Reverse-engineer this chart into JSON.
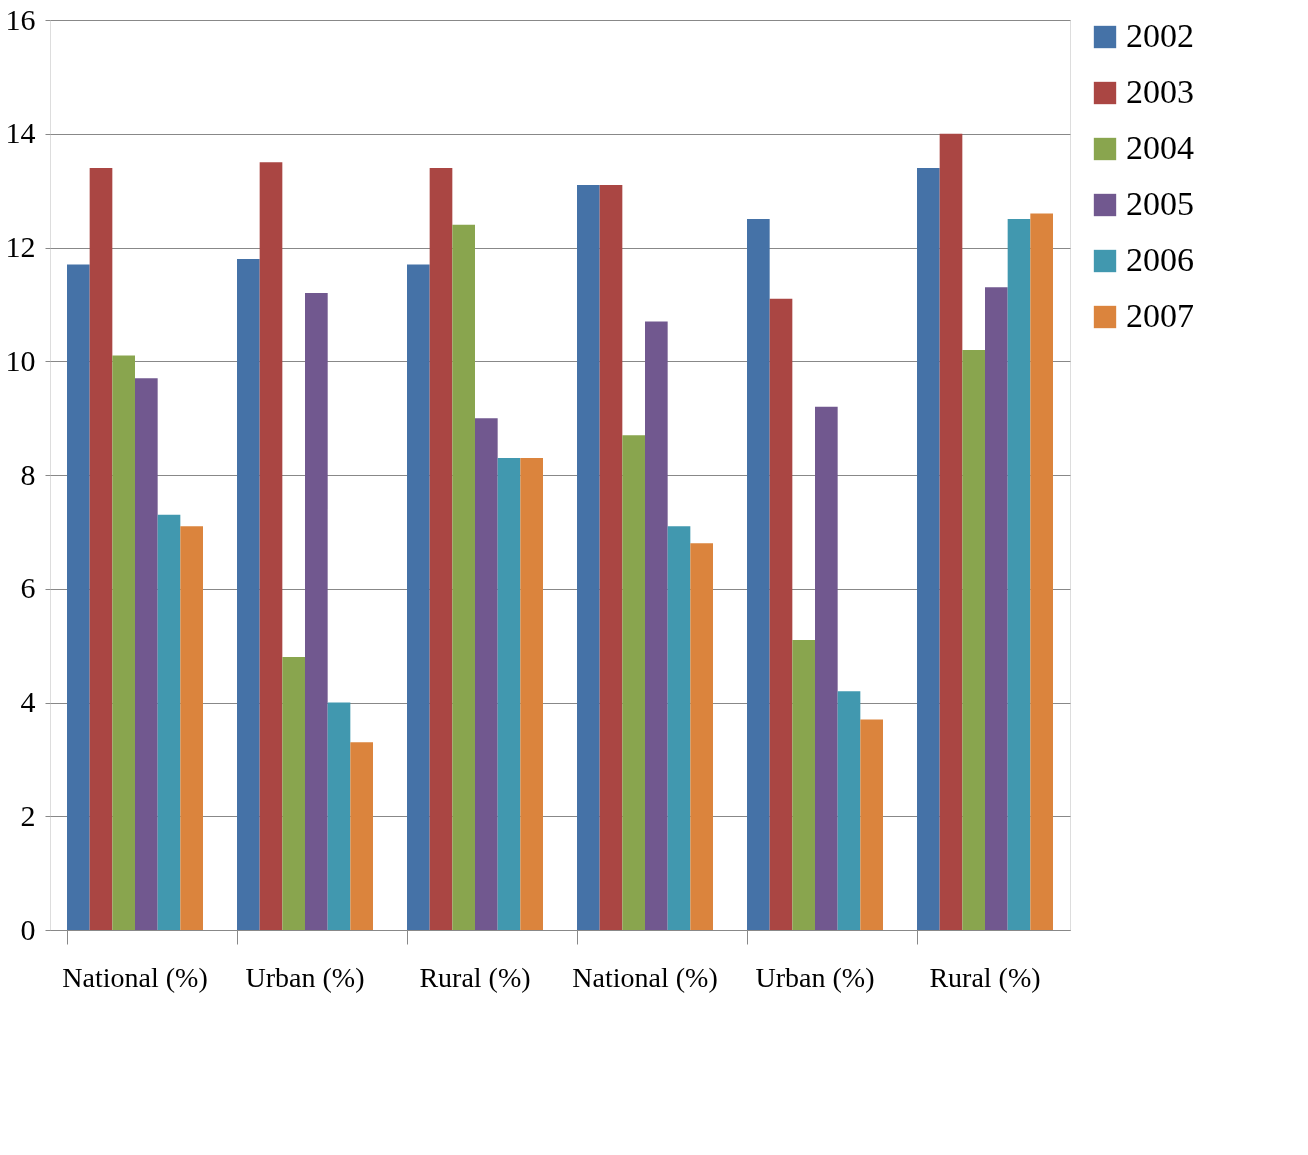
{
  "chart_data": {
    "type": "bar",
    "categories": [
      "National (%)",
      "Urban (%)",
      "Rural (%)",
      "National (%)",
      "Urban (%)",
      "Rural (%)"
    ],
    "series": [
      {
        "name": "2002",
        "color": "#4572a7",
        "values": [
          11.7,
          11.8,
          11.7,
          13.1,
          12.5,
          13.4
        ]
      },
      {
        "name": "2003",
        "color": "#aa4643",
        "values": [
          13.4,
          13.5,
          13.4,
          13.1,
          11.1,
          14.0
        ]
      },
      {
        "name": "2004",
        "color": "#89a54e",
        "values": [
          10.1,
          4.8,
          12.4,
          8.7,
          5.1,
          10.2
        ]
      },
      {
        "name": "2005",
        "color": "#71588f",
        "values": [
          9.7,
          11.2,
          9.0,
          10.7,
          9.2,
          11.3
        ]
      },
      {
        "name": "2006",
        "color": "#4198af",
        "values": [
          7.3,
          4.0,
          8.3,
          7.1,
          4.2,
          12.5
        ]
      },
      {
        "name": "2007",
        "color": "#db843d",
        "values": [
          7.1,
          3.3,
          8.3,
          6.8,
          3.7,
          12.6
        ]
      }
    ],
    "ylim": [
      0,
      16
    ],
    "yticks": [
      0,
      2,
      4,
      6,
      8,
      10,
      12,
      14,
      16
    ],
    "grid": "y",
    "legend": "right"
  }
}
